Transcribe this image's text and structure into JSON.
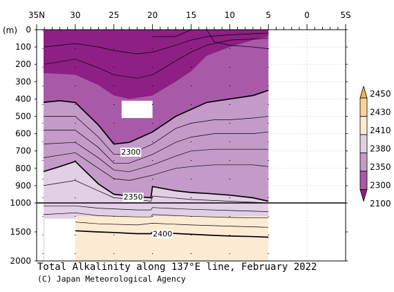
{
  "chart_data": {
    "type": "contour",
    "title": "Total Alkalinity along 137°E line, February 2022",
    "credit": "(C) Japan Meteorological Agency",
    "x_axis": {
      "ticks": [
        "35N",
        "30",
        "25",
        "20",
        "15",
        "10",
        "5",
        "0",
        "5S"
      ],
      "tick_values": [
        35,
        30,
        25,
        20,
        15,
        10,
        5,
        0,
        -5
      ],
      "range": [
        35,
        -5
      ]
    },
    "y_axis": {
      "label": "(m)",
      "ticks": [
        "0",
        "100",
        "200",
        "300",
        "400",
        "500",
        "600",
        "700",
        "800",
        "900",
        "1000",
        "1500",
        "2000"
      ],
      "tick_values": [
        0,
        100,
        200,
        300,
        400,
        500,
        600,
        700,
        800,
        900,
        1000,
        1500,
        2000
      ],
      "upper_range": [
        0,
        1000
      ],
      "lower_range": [
        1000,
        2000
      ]
    },
    "colorbar": {
      "levels": [
        "2100",
        "2300",
        "2350",
        "2380",
        "2410",
        "2430",
        "2450"
      ],
      "colors": [
        "#8e1f84",
        "#a85aa8",
        "#c49ac8",
        "#e2cfe6",
        "#fbebd3",
        "#f7d49b",
        "#f0b15a"
      ]
    },
    "contour_labels": [
      "2300",
      "2350",
      "2400"
    ],
    "stations_lat": [
      34.2,
      30,
      25,
      20,
      15,
      10,
      5
    ],
    "data_region_lat": [
      34.2,
      5
    ],
    "bold_contours": [
      {
        "value": 2300,
        "points": [
          [
            34.2,
            420
          ],
          [
            32,
            410
          ],
          [
            30,
            420
          ],
          [
            27,
            550
          ],
          [
            25,
            660
          ],
          [
            23,
            650
          ],
          [
            20,
            590
          ],
          [
            17,
            500
          ],
          [
            15,
            460
          ],
          [
            13,
            420
          ],
          [
            10,
            400
          ],
          [
            7,
            380
          ],
          [
            5,
            350
          ]
        ]
      },
      {
        "value": 2350,
        "points": [
          [
            34.2,
            820
          ],
          [
            32,
            790
          ],
          [
            30,
            760
          ],
          [
            27,
            890
          ],
          [
            25,
            950
          ],
          [
            23,
            960
          ],
          [
            20.2,
            970
          ],
          [
            20,
            905
          ],
          [
            17,
            930
          ],
          [
            15,
            940
          ],
          [
            13,
            945
          ],
          [
            10,
            955
          ],
          [
            7,
            970
          ],
          [
            5,
            990
          ]
        ]
      },
      {
        "value": 2400,
        "points": [
          [
            30,
            1480
          ],
          [
            27,
            1500
          ],
          [
            25,
            1510
          ],
          [
            22,
            1530
          ],
          [
            20.2,
            1530
          ],
          [
            20,
            1500
          ],
          [
            18,
            1520
          ],
          [
            15,
            1540
          ],
          [
            12,
            1560
          ],
          [
            10,
            1570
          ],
          [
            7,
            1580
          ],
          [
            5,
            1590
          ]
        ]
      }
    ]
  }
}
